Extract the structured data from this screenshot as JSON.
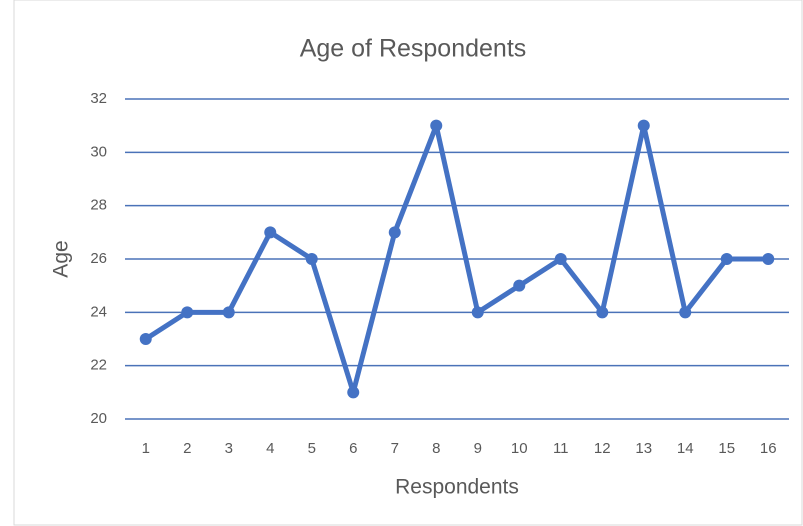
{
  "chart_data": {
    "type": "line",
    "title": "Age of Respondents",
    "x_label": "Respondents",
    "y_label": "Age",
    "categories": [
      "1",
      "2",
      "3",
      "4",
      "5",
      "6",
      "7",
      "8",
      "9",
      "10",
      "11",
      "12",
      "13",
      "14",
      "15",
      "16"
    ],
    "values": [
      23,
      24,
      24,
      27,
      26,
      21,
      27,
      31,
      24,
      25,
      26,
      24,
      31,
      24,
      26,
      26
    ],
    "color": "#4472c4",
    "grid": true,
    "grid_color": "#4a72b8",
    "ylim": [
      20,
      32
    ],
    "yticks": [
      20,
      22,
      24,
      26,
      28,
      30,
      32
    ]
  }
}
